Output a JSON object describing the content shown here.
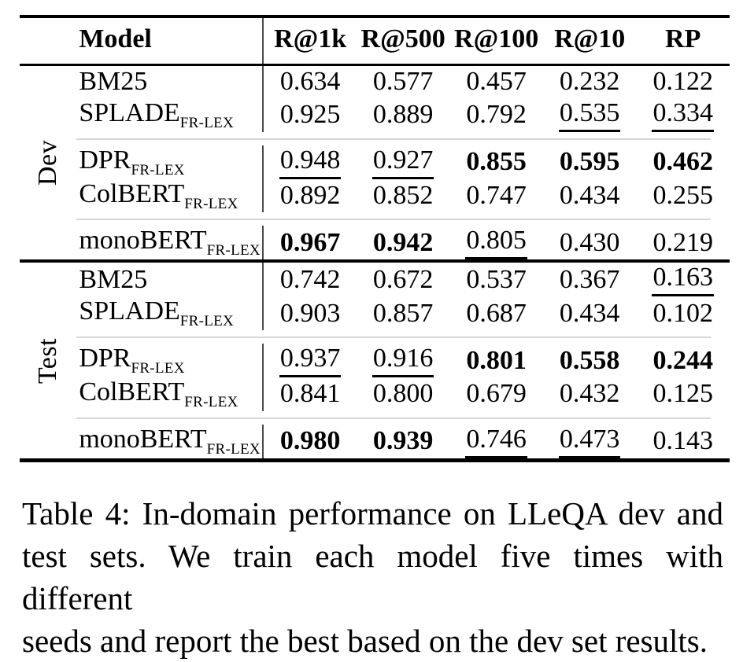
{
  "table": {
    "header": {
      "model": "Model",
      "metrics": [
        "R@1k",
        "R@500",
        "R@100",
        "R@10",
        "RP"
      ]
    },
    "sections": [
      {
        "label": "Dev",
        "groups": [
          {
            "rows": [
              {
                "model": "BM25",
                "subscript": "",
                "values": [
                  {
                    "text": "0.634",
                    "style": "plain"
                  },
                  {
                    "text": "0.577",
                    "style": "plain"
                  },
                  {
                    "text": "0.457",
                    "style": "plain"
                  },
                  {
                    "text": "0.232",
                    "style": "plain"
                  },
                  {
                    "text": "0.122",
                    "style": "plain"
                  }
                ]
              },
              {
                "model": "SPLADE",
                "subscript": "FR-LEX",
                "values": [
                  {
                    "text": "0.925",
                    "style": "plain"
                  },
                  {
                    "text": "0.889",
                    "style": "plain"
                  },
                  {
                    "text": "0.792",
                    "style": "plain"
                  },
                  {
                    "text": "0.535",
                    "style": "underline"
                  },
                  {
                    "text": "0.334",
                    "style": "underline"
                  }
                ]
              }
            ]
          },
          {
            "rows": [
              {
                "model": "DPR",
                "subscript": "FR-LEX",
                "values": [
                  {
                    "text": "0.948",
                    "style": "underline"
                  },
                  {
                    "text": "0.927",
                    "style": "underline"
                  },
                  {
                    "text": "0.855",
                    "style": "bold"
                  },
                  {
                    "text": "0.595",
                    "style": "bold"
                  },
                  {
                    "text": "0.462",
                    "style": "bold"
                  }
                ]
              },
              {
                "model": "ColBERT",
                "subscript": "FR-LEX",
                "values": [
                  {
                    "text": "0.892",
                    "style": "plain"
                  },
                  {
                    "text": "0.852",
                    "style": "plain"
                  },
                  {
                    "text": "0.747",
                    "style": "plain"
                  },
                  {
                    "text": "0.434",
                    "style": "plain"
                  },
                  {
                    "text": "0.255",
                    "style": "plain"
                  }
                ]
              }
            ]
          },
          {
            "rows": [
              {
                "model": "monoBERT",
                "subscript": "FR-LEX",
                "values": [
                  {
                    "text": "0.967",
                    "style": "bold"
                  },
                  {
                    "text": "0.942",
                    "style": "bold"
                  },
                  {
                    "text": "0.805",
                    "style": "underline"
                  },
                  {
                    "text": "0.430",
                    "style": "plain"
                  },
                  {
                    "text": "0.219",
                    "style": "plain"
                  }
                ]
              }
            ]
          }
        ]
      },
      {
        "label": "Test",
        "groups": [
          {
            "rows": [
              {
                "model": "BM25",
                "subscript": "",
                "values": [
                  {
                    "text": "0.742",
                    "style": "plain"
                  },
                  {
                    "text": "0.672",
                    "style": "plain"
                  },
                  {
                    "text": "0.537",
                    "style": "plain"
                  },
                  {
                    "text": "0.367",
                    "style": "plain"
                  },
                  {
                    "text": "0.163",
                    "style": "underline"
                  }
                ]
              },
              {
                "model": "SPLADE",
                "subscript": "FR-LEX",
                "values": [
                  {
                    "text": "0.903",
                    "style": "plain"
                  },
                  {
                    "text": "0.857",
                    "style": "plain"
                  },
                  {
                    "text": "0.687",
                    "style": "plain"
                  },
                  {
                    "text": "0.434",
                    "style": "plain"
                  },
                  {
                    "text": "0.102",
                    "style": "plain"
                  }
                ]
              }
            ]
          },
          {
            "rows": [
              {
                "model": "DPR",
                "subscript": "FR-LEX",
                "values": [
                  {
                    "text": "0.937",
                    "style": "underline"
                  },
                  {
                    "text": "0.916",
                    "style": "underline"
                  },
                  {
                    "text": "0.801",
                    "style": "bold"
                  },
                  {
                    "text": "0.558",
                    "style": "bold"
                  },
                  {
                    "text": "0.244",
                    "style": "bold"
                  }
                ]
              },
              {
                "model": "ColBERT",
                "subscript": "FR-LEX",
                "values": [
                  {
                    "text": "0.841",
                    "style": "plain"
                  },
                  {
                    "text": "0.800",
                    "style": "plain"
                  },
                  {
                    "text": "0.679",
                    "style": "plain"
                  },
                  {
                    "text": "0.432",
                    "style": "plain"
                  },
                  {
                    "text": "0.125",
                    "style": "plain"
                  }
                ]
              }
            ]
          },
          {
            "rows": [
              {
                "model": "monoBERT",
                "subscript": "FR-LEX",
                "values": [
                  {
                    "text": "0.980",
                    "style": "bold"
                  },
                  {
                    "text": "0.939",
                    "style": "bold"
                  },
                  {
                    "text": "0.746",
                    "style": "underline"
                  },
                  {
                    "text": "0.473",
                    "style": "underline"
                  },
                  {
                    "text": "0.143",
                    "style": "plain"
                  }
                ]
              }
            ]
          }
        ]
      }
    ]
  },
  "caption": {
    "lines": [
      "Table 4: In-domain performance on LLeQA dev and",
      "test sets. We train each model five times with different",
      "seeds and report the best based on the dev set results."
    ]
  },
  "colors": {
    "text": "#000000",
    "rule_heavy": "#000000",
    "rule_light": "#d6d6d6",
    "vertical_rule": "#4a4a4a",
    "background": "#ffffff"
  }
}
